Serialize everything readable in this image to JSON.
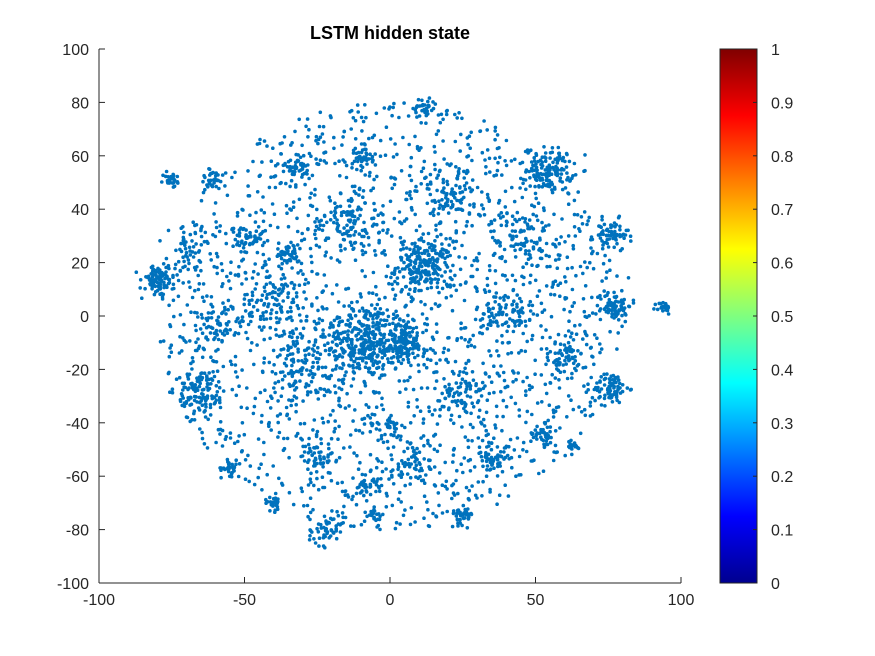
{
  "chart_data": {
    "type": "scatter",
    "title": "LSTM hidden state",
    "xlabel": "",
    "ylabel": "",
    "xlim": [
      -100,
      100
    ],
    "ylim": [
      -100,
      100
    ],
    "x_ticks": [
      -100,
      -50,
      0,
      50,
      100
    ],
    "y_ticks": [
      -100,
      -80,
      -60,
      -40,
      -20,
      0,
      20,
      40,
      60,
      80,
      100
    ],
    "grid": false,
    "legend": "none",
    "marker_color": "#0072BD",
    "colorbar": {
      "colormap": "jet",
      "range": [
        0,
        1
      ],
      "ticks": [
        "0",
        "0.1",
        "0.2",
        "0.3",
        "0.4",
        "0.5",
        "0.6",
        "0.7",
        "0.8",
        "0.9",
        "1"
      ]
    },
    "clusters": [
      {
        "center": [
          -8,
          -10
        ],
        "spread": 7,
        "count": 320
      },
      {
        "center": [
          12,
          18
        ],
        "spread": 5,
        "count": 200
      },
      {
        "center": [
          55,
          55
        ],
        "spread": 4,
        "count": 140
      },
      {
        "center": [
          -80,
          13
        ],
        "spread": 3,
        "count": 90
      },
      {
        "center": [
          76,
          30
        ],
        "spread": 3,
        "count": 70
      },
      {
        "center": [
          77,
          4
        ],
        "spread": 3,
        "count": 80
      },
      {
        "center": [
          76,
          -27
        ],
        "spread": 3,
        "count": 80
      },
      {
        "center": [
          94,
          3
        ],
        "spread": 1.2,
        "count": 25
      },
      {
        "center": [
          -75,
          51
        ],
        "spread": 1.5,
        "count": 25
      },
      {
        "center": [
          -61,
          51
        ],
        "spread": 2,
        "count": 30
      },
      {
        "center": [
          -65,
          -28
        ],
        "spread": 4,
        "count": 100
      },
      {
        "center": [
          -55,
          -57
        ],
        "spread": 1.5,
        "count": 25
      },
      {
        "center": [
          -40,
          -70
        ],
        "spread": 1.5,
        "count": 25
      },
      {
        "center": [
          -22,
          -80
        ],
        "spread": 3,
        "count": 50
      },
      {
        "center": [
          -5,
          -75
        ],
        "spread": 1.5,
        "count": 20
      },
      {
        "center": [
          25,
          -74
        ],
        "spread": 2,
        "count": 35
      },
      {
        "center": [
          35,
          -53
        ],
        "spread": 3,
        "count": 50
      },
      {
        "center": [
          53,
          -45
        ],
        "spread": 2,
        "count": 35
      },
      {
        "center": [
          63,
          -49
        ],
        "spread": 1.2,
        "count": 15
      },
      {
        "center": [
          12,
          78
        ],
        "spread": 2,
        "count": 35
      },
      {
        "center": [
          -32,
          56
        ],
        "spread": 3,
        "count": 55
      },
      {
        "center": [
          -9,
          60
        ],
        "spread": 2,
        "count": 35
      },
      {
        "center": [
          -48,
          28
        ],
        "spread": 3,
        "count": 50
      },
      {
        "center": [
          -35,
          23
        ],
        "spread": 2,
        "count": 35
      },
      {
        "center": [
          -25,
          -53
        ],
        "spread": 3,
        "count": 50
      },
      {
        "center": [
          -8,
          -63
        ],
        "spread": 2,
        "count": 35
      },
      {
        "center": [
          0,
          -40
        ],
        "spread": 2,
        "count": 30
      },
      {
        "center": [
          45,
          30
        ],
        "spread": 5,
        "count": 80
      },
      {
        "center": [
          40,
          0
        ],
        "spread": 5,
        "count": 80
      },
      {
        "center": [
          25,
          -30
        ],
        "spread": 5,
        "count": 80
      },
      {
        "center": [
          -30,
          -20
        ],
        "spread": 7,
        "count": 120
      },
      {
        "center": [
          -40,
          5
        ],
        "spread": 6,
        "count": 100
      },
      {
        "center": [
          -15,
          35
        ],
        "spread": 6,
        "count": 100
      },
      {
        "center": [
          20,
          45
        ],
        "spread": 6,
        "count": 90
      },
      {
        "center": [
          10,
          -55
        ],
        "spread": 5,
        "count": 60
      },
      {
        "center": [
          -60,
          -5
        ],
        "spread": 5,
        "count": 70
      },
      {
        "center": [
          60,
          -15
        ],
        "spread": 4,
        "count": 60
      },
      {
        "center": [
          -68,
          25
        ],
        "spread": 4,
        "count": 50
      },
      {
        "center": [
          5,
          -10
        ],
        "spread": 4,
        "count": 120
      }
    ],
    "background_points": {
      "radius": 80,
      "count": 1700
    }
  }
}
